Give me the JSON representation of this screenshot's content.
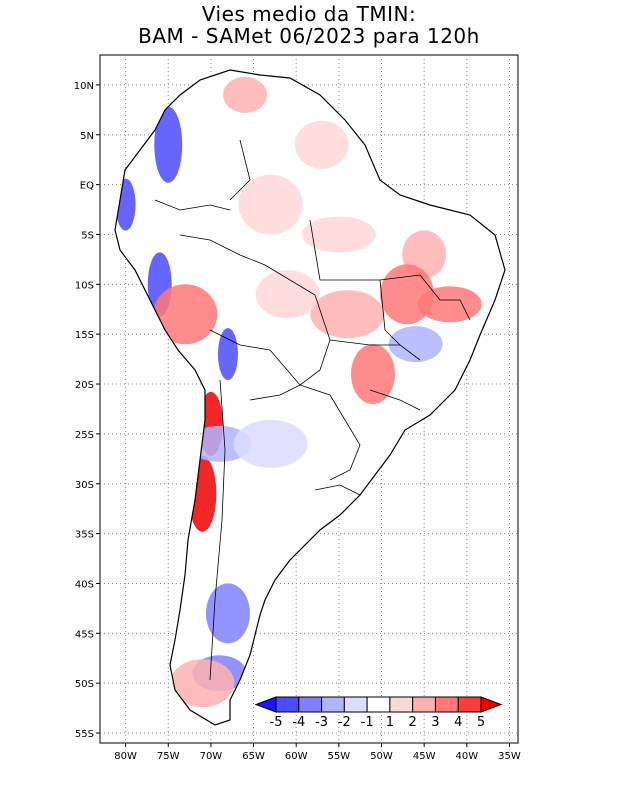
{
  "title": {
    "line1": "Vies medio da TMIN:",
    "line2": "BAM - SAMet 06/2023  para 120h"
  },
  "map": {
    "region": "South America",
    "lon_labels": [
      "80W",
      "75W",
      "70W",
      "65W",
      "60W",
      "55W",
      "50W",
      "45W",
      "40W",
      "35W"
    ],
    "lat_labels": [
      "10N",
      "5N",
      "EQ",
      "5S",
      "10S",
      "15S",
      "20S",
      "25S",
      "30S",
      "35S",
      "40S",
      "45S",
      "50S",
      "55S"
    ],
    "lon_range": [
      -83,
      -34
    ],
    "lat_range": [
      13,
      -56
    ],
    "regions": [
      {
        "name": "northern-coast-warm",
        "lon": -66,
        "lat": 9,
        "bias": 2
      },
      {
        "name": "guianas-warm",
        "lon": -57,
        "lat": 4,
        "bias": 1
      },
      {
        "name": "amazon-warm",
        "lon": -63,
        "lat": -2,
        "bias": 1
      },
      {
        "name": "central-amazon-warm",
        "lon": -55,
        "lat": -5,
        "bias": 1
      },
      {
        "name": "northeast-brazil-warm",
        "lon": -45,
        "lat": -7,
        "bias": 2
      },
      {
        "name": "tocantins-warm",
        "lon": -47,
        "lat": -11,
        "bias": 3
      },
      {
        "name": "bahia-warm",
        "lon": -42,
        "lat": -12,
        "bias": 3
      },
      {
        "name": "mato-grosso-warm",
        "lon": -54,
        "lat": -13,
        "bias": 2
      },
      {
        "name": "mato-grosso-do-sul-warm",
        "lon": -51,
        "lat": -19,
        "bias": 3
      },
      {
        "name": "central-brazil-cool",
        "lon": -46,
        "lat": -16,
        "bias": -2
      },
      {
        "name": "rondonia-warm",
        "lon": -61,
        "lat": -11,
        "bias": 1
      },
      {
        "name": "colombia-andes-cool",
        "lon": -75,
        "lat": 4,
        "bias": -4
      },
      {
        "name": "ecuador-coast-cool",
        "lon": -80,
        "lat": -2,
        "bias": -4
      },
      {
        "name": "peru-andes-cool",
        "lon": -76,
        "lat": -10,
        "bias": -4
      },
      {
        "name": "peru-andes-warm",
        "lon": -73,
        "lat": -13,
        "bias": 3
      },
      {
        "name": "bolivia-andes-cool",
        "lon": -68,
        "lat": -17,
        "bias": -4
      },
      {
        "name": "chile-andes-warm",
        "lon": -70,
        "lat": -24,
        "bias": 5
      },
      {
        "name": "chile-central-warm",
        "lon": -71,
        "lat": -31,
        "bias": 5
      },
      {
        "name": "argentina-andes-cool",
        "lon": -69,
        "lat": -26,
        "bias": -2
      },
      {
        "name": "argentina-central-cool",
        "lon": -63,
        "lat": -26,
        "bias": -1
      },
      {
        "name": "patagonia-cool",
        "lon": -68,
        "lat": -43,
        "bias": -3
      },
      {
        "name": "santa-cruz-cool",
        "lon": -69,
        "lat": -49,
        "bias": -3
      },
      {
        "name": "tierra-del-fuego-warm",
        "lon": -71,
        "lat": -50,
        "bias": 2
      }
    ]
  },
  "colorbar": {
    "labels": [
      "-5",
      "-4",
      "-3",
      "-2",
      "-1",
      "1",
      "2",
      "3",
      "4",
      "5"
    ],
    "colors": [
      "#1a14ff",
      "#4b4bff",
      "#8080ff",
      "#b0b4ff",
      "#dcdcff",
      "#ffffff",
      "#ffd7d7",
      "#ffb0b0",
      "#ff7878",
      "#ff3c3c",
      "#ee0000"
    ]
  }
}
